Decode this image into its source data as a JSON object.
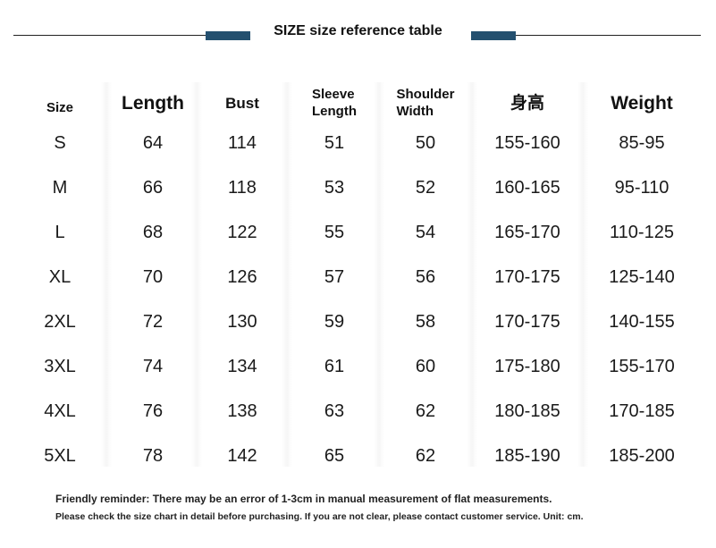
{
  "title": "SIZE size reference table",
  "accent_color": "#24506f",
  "table": {
    "headers": [
      "Size",
      "Length",
      "Bust",
      "Sleeve\nLength",
      "Shoulder\nWidth",
      "身高",
      "Weight"
    ],
    "rows": [
      [
        "S",
        "64",
        "114",
        "51",
        "50",
        "155-160",
        "85-95"
      ],
      [
        "M",
        "66",
        "118",
        "53",
        "52",
        "160-165",
        "95-110"
      ],
      [
        "L",
        "68",
        "122",
        "55",
        "54",
        "165-170",
        "110-125"
      ],
      [
        "XL",
        "70",
        "126",
        "57",
        "56",
        "170-175",
        "125-140"
      ],
      [
        "2XL",
        "72",
        "130",
        "59",
        "58",
        "170-175",
        "140-155"
      ],
      [
        "3XL",
        "74",
        "134",
        "61",
        "60",
        "175-180",
        "155-170"
      ],
      [
        "4XL",
        "76",
        "138",
        "63",
        "62",
        "180-185",
        "170-185"
      ],
      [
        "5XL",
        "78",
        "142",
        "65",
        "62",
        "185-190",
        "185-200"
      ]
    ]
  },
  "notes": {
    "reminder": "Friendly reminder: There may be an error of 1-3cm in manual measurement of flat measurements.",
    "detail": "Please check the size chart in detail before purchasing. If you are not clear, please contact customer service. Unit: cm."
  }
}
